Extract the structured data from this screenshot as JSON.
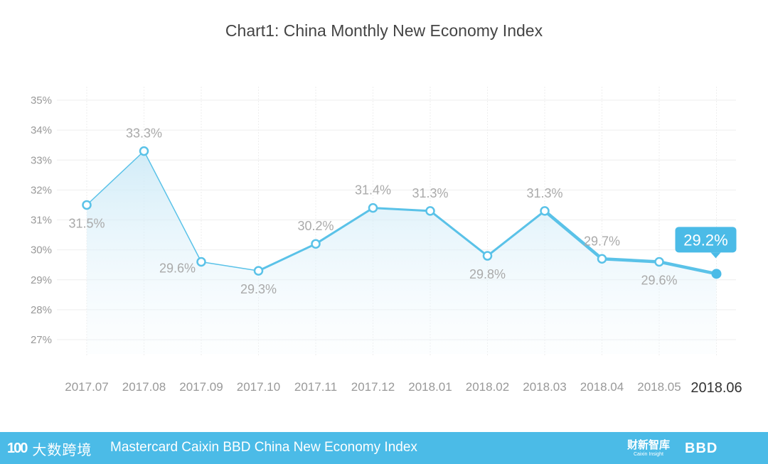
{
  "chart_data": {
    "type": "line",
    "title": "Chart1: China Monthly New Economy Index",
    "xlabel": "",
    "ylabel": "",
    "ylim": [
      27,
      35
    ],
    "yticks": [
      "35%",
      "34%",
      "33%",
      "32%",
      "31%",
      "30%",
      "29%",
      "28%",
      "27%"
    ],
    "categories": [
      "2017.07",
      "2017.08",
      "2017.09",
      "2017.10",
      "2017.11",
      "2017.12",
      "2018.01",
      "2018.02",
      "2018.03",
      "2018.04",
      "2018.05",
      "2018.06"
    ],
    "series": [
      {
        "name": "China Monthly New Economy Index",
        "values": [
          31.5,
          33.3,
          29.6,
          29.3,
          30.2,
          31.4,
          31.3,
          29.8,
          31.3,
          29.7,
          29.6,
          29.2
        ],
        "labels": [
          "31.5%",
          "33.3%",
          "29.6%",
          "29.3%",
          "30.2%",
          "31.4%",
          "31.3%",
          "29.8%",
          "31.3%",
          "29.7%",
          "29.6%",
          "29.2%"
        ]
      }
    ],
    "highlight_index": 11,
    "grid": true,
    "legend": "none"
  },
  "colors": {
    "line": "#5ac2e8",
    "marker_fill": "#ffffff",
    "highlight": "#4bbbe7",
    "grid": "#eeeeee",
    "label": "#aaaaaa",
    "tick": "#999999",
    "footer": "#4bbbe7"
  },
  "footer": {
    "left_logo_mark": "100",
    "left_logo_text": "大数跨境",
    "text": "Mastercard Caixin BBD China New Economy Index",
    "right_logo1": "财新智库",
    "right_logo1_sub": "Caixin Insight",
    "right_logo2": "BBD"
  }
}
